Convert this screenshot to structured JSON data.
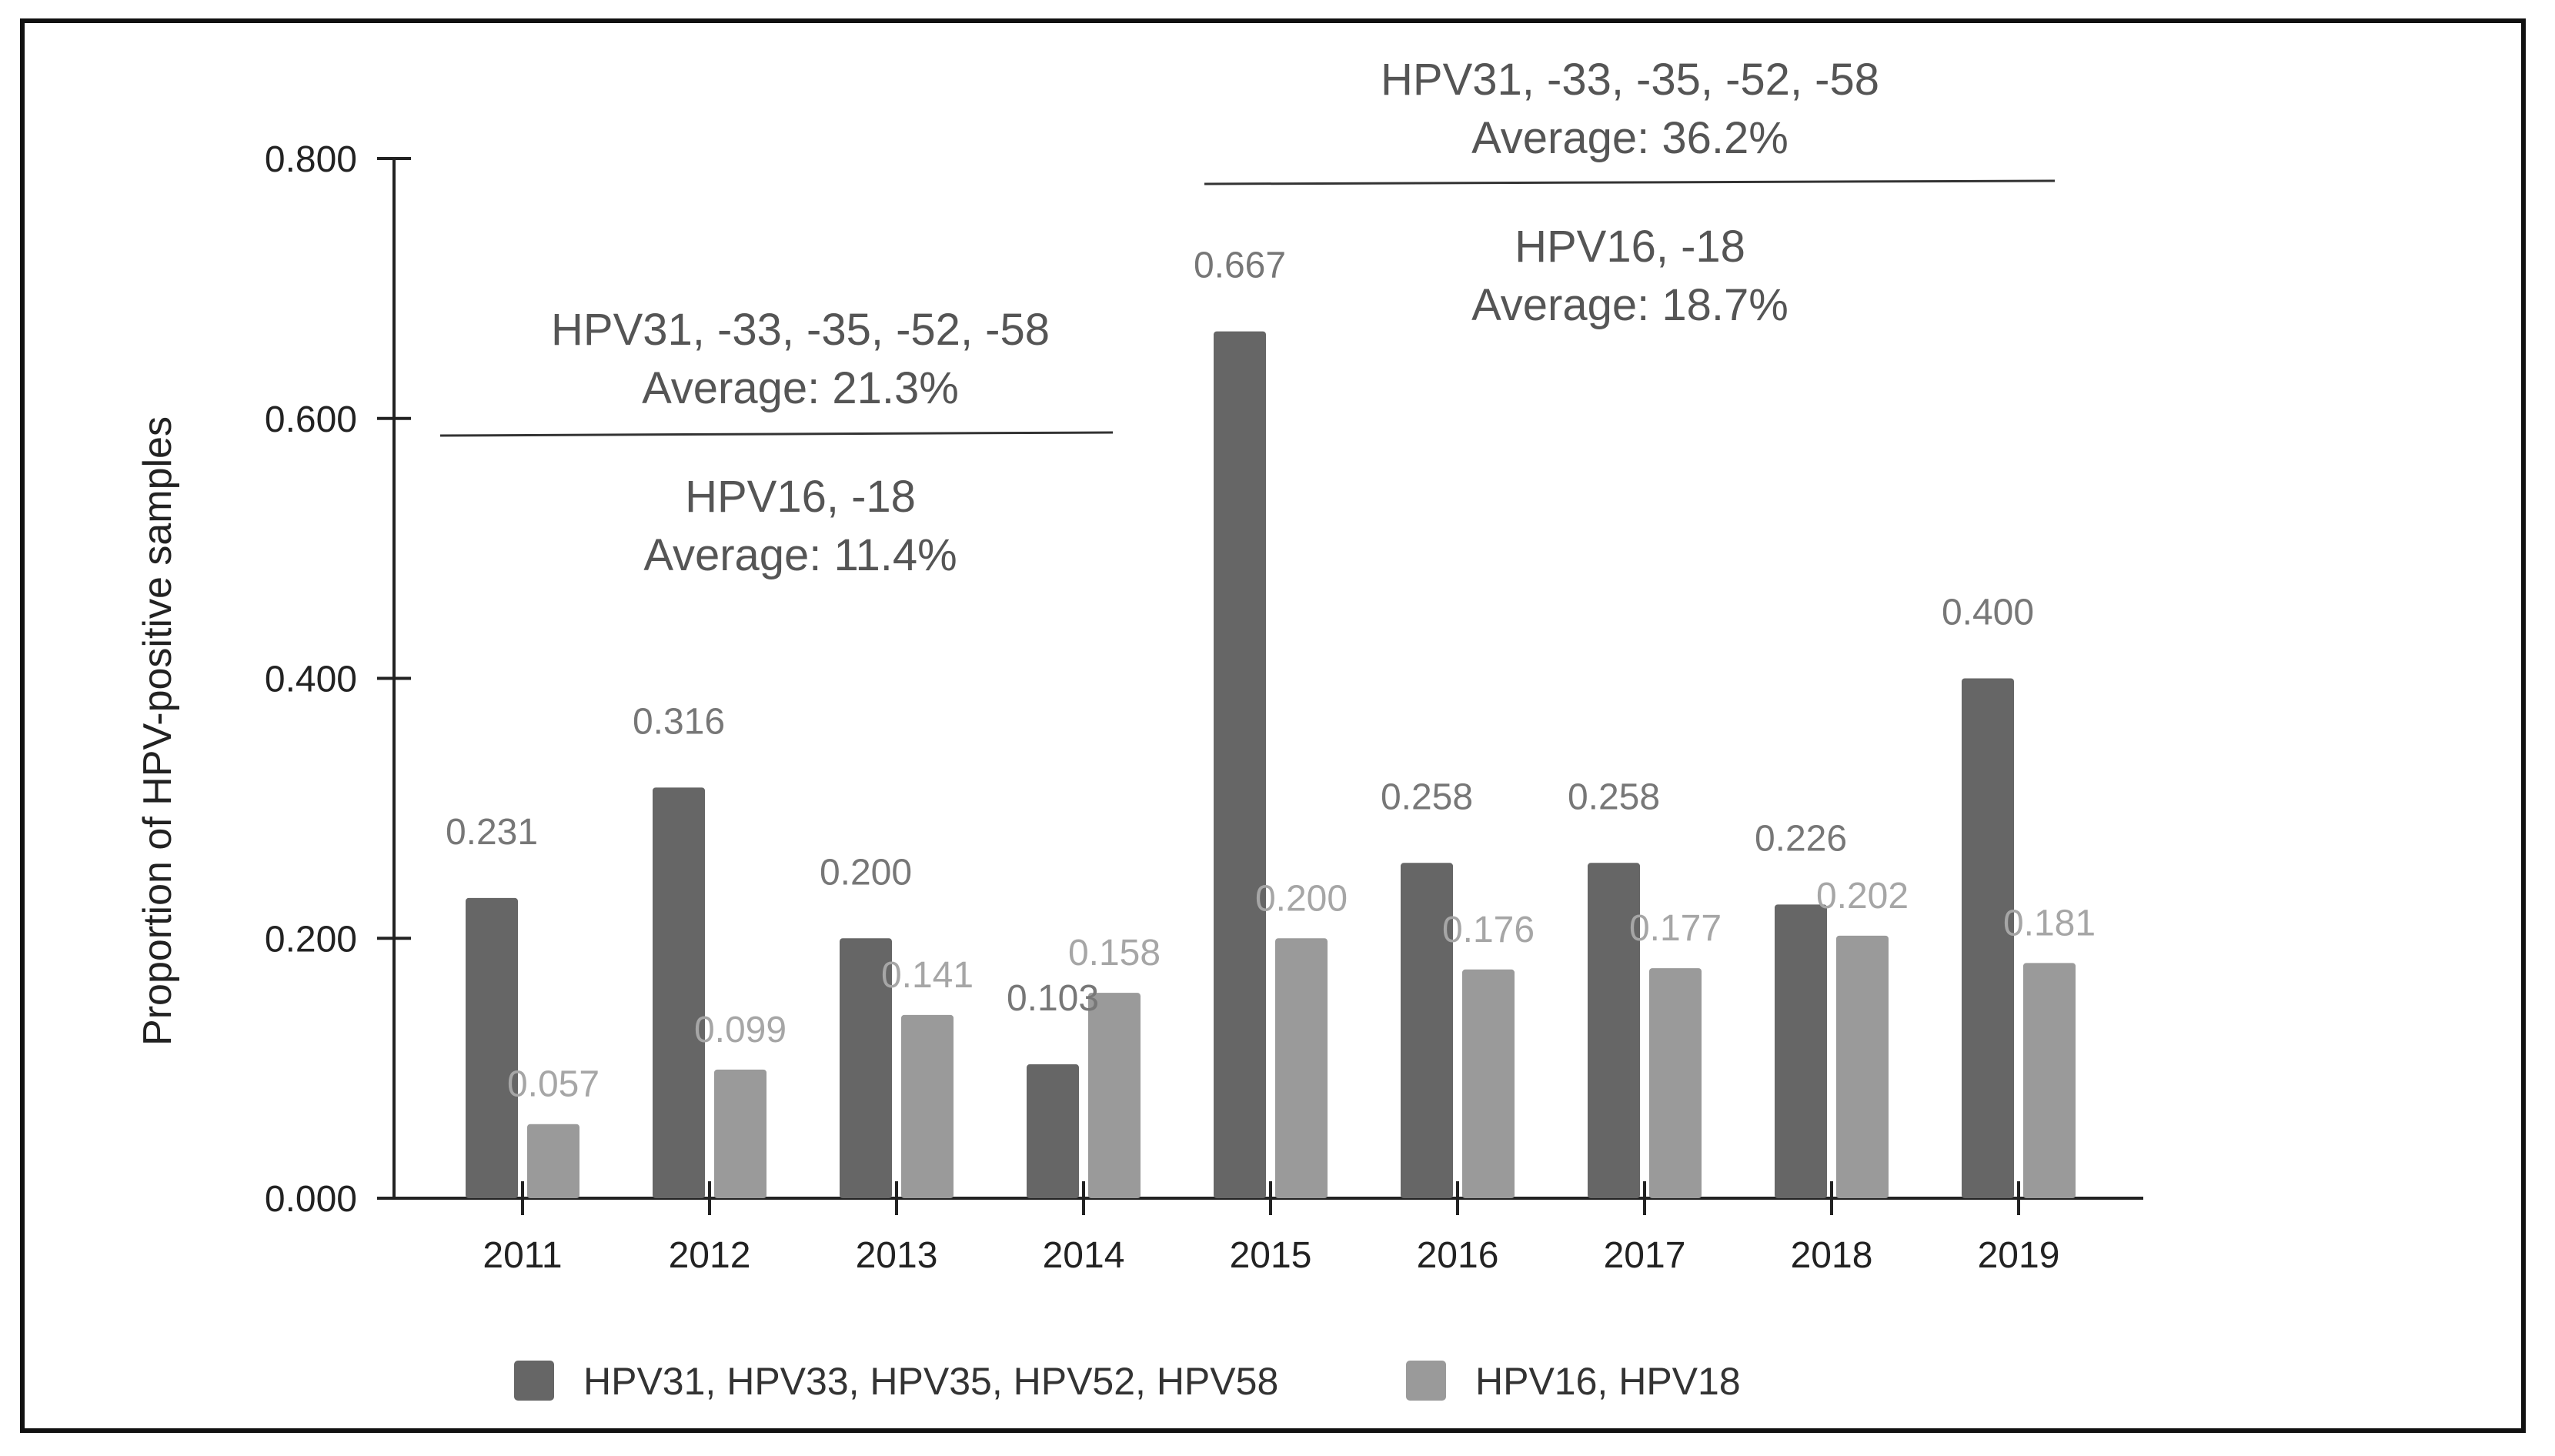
{
  "chart_data": {
    "type": "bar",
    "title": "",
    "xlabel": "",
    "ylabel": "Proportion of HPV-positive samples",
    "ylim": [
      0,
      0.8
    ],
    "yticks": [
      "0.000",
      "0.200",
      "0.400",
      "0.600",
      "0.800"
    ],
    "categories": [
      "2011",
      "2012",
      "2013",
      "2014",
      "2015",
      "2016",
      "2017",
      "2018",
      "2019"
    ],
    "series": [
      {
        "name": "HPV31, HPV33, HPV35, HPV52, HPV58",
        "color": "#666666",
        "label_color": "#777777",
        "values": [
          0.231,
          0.316,
          0.2,
          0.103,
          0.667,
          0.258,
          0.258,
          0.226,
          0.4
        ],
        "labels": [
          "0.231",
          "0.316",
          "0.200",
          "0.103",
          "0.667",
          "0.258",
          "0.258",
          "0.226",
          "0.400"
        ]
      },
      {
        "name": "HPV16, HPV18",
        "color": "#9a9a9a",
        "label_color": "#a6a6a6",
        "values": [
          0.057,
          0.099,
          0.141,
          0.158,
          0.2,
          0.176,
          0.177,
          0.202,
          0.181
        ],
        "labels": [
          "0.057",
          "0.099",
          "0.141",
          "0.158",
          "0.200",
          "0.176",
          "0.177",
          "0.202",
          "0.181"
        ]
      }
    ],
    "legend_position": "bottom-center",
    "annotations": [
      {
        "range": [
          "2011",
          "2014"
        ],
        "above": [
          "HPV31, -33, -35, -52, -58",
          "Average: 21.3%"
        ],
        "below": [
          "HPV16, -18",
          "Average: 11.4%"
        ]
      },
      {
        "range": [
          "2015",
          "2019"
        ],
        "above": [
          "HPV31, -33, -35, -52, -58",
          "Average: 36.2%"
        ],
        "below": [
          "HPV16, -18",
          "Average: 18.7%"
        ]
      }
    ]
  }
}
